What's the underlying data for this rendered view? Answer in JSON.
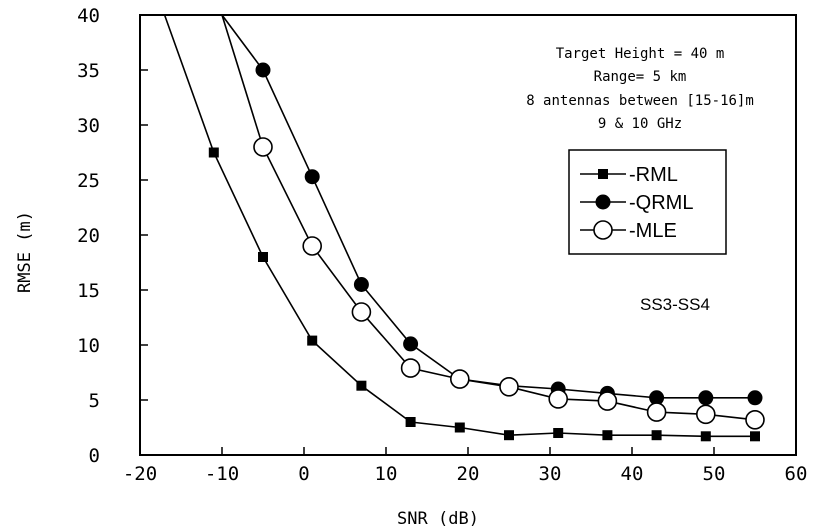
{
  "chart_data": {
    "type": "line",
    "xlabel": "SNR (dB)",
    "ylabel": "RMSE (m)",
    "xlim": [
      -20,
      60
    ],
    "ylim": [
      0,
      40
    ],
    "xticks": [
      "-20",
      "-10",
      "0",
      "10",
      "20",
      "30",
      "40",
      "50",
      "60"
    ],
    "yticks": [
      "0",
      "5",
      "10",
      "15",
      "20",
      "25",
      "30",
      "35",
      "40"
    ],
    "grid": false,
    "annotations": [
      "Target Height = 40 m",
      "Range= 5 km",
      "8 antennas between [15-16]m",
      "9 & 10 GHz"
    ],
    "tag": "SS3-SS4",
    "legend_position": "right",
    "series": [
      {
        "name": "RML",
        "marker": "square",
        "points": [
          [
            -17,
            40
          ],
          [
            -11,
            27.5
          ],
          [
            -5,
            18
          ],
          [
            1,
            10.4
          ],
          [
            7,
            6.3
          ],
          [
            13,
            3.0
          ],
          [
            19,
            2.5
          ],
          [
            25,
            1.8
          ],
          [
            31,
            2.0
          ],
          [
            37,
            1.8
          ],
          [
            43,
            1.8
          ],
          [
            49,
            1.7
          ],
          [
            55,
            1.7
          ]
        ]
      },
      {
        "name": "QRML",
        "marker": "filled-circle",
        "points": [
          [
            -10,
            40
          ],
          [
            -5,
            35
          ],
          [
            1,
            25.3
          ],
          [
            7,
            15.5
          ],
          [
            13,
            10.1
          ],
          [
            19,
            6.9
          ],
          [
            25,
            6.3
          ],
          [
            31,
            6.0
          ],
          [
            37,
            5.6
          ],
          [
            43,
            5.2
          ],
          [
            49,
            5.2
          ],
          [
            55,
            5.2
          ]
        ]
      },
      {
        "name": "MLE",
        "marker": "open-circle",
        "points": [
          [
            -10,
            40
          ],
          [
            -5,
            28
          ],
          [
            1,
            19
          ],
          [
            7,
            13
          ],
          [
            13,
            7.9
          ],
          [
            19,
            6.9
          ],
          [
            25,
            6.2
          ],
          [
            31,
            5.1
          ],
          [
            37,
            4.9
          ],
          [
            43,
            3.9
          ],
          [
            49,
            3.7
          ],
          [
            55,
            3.2
          ]
        ]
      }
    ]
  }
}
